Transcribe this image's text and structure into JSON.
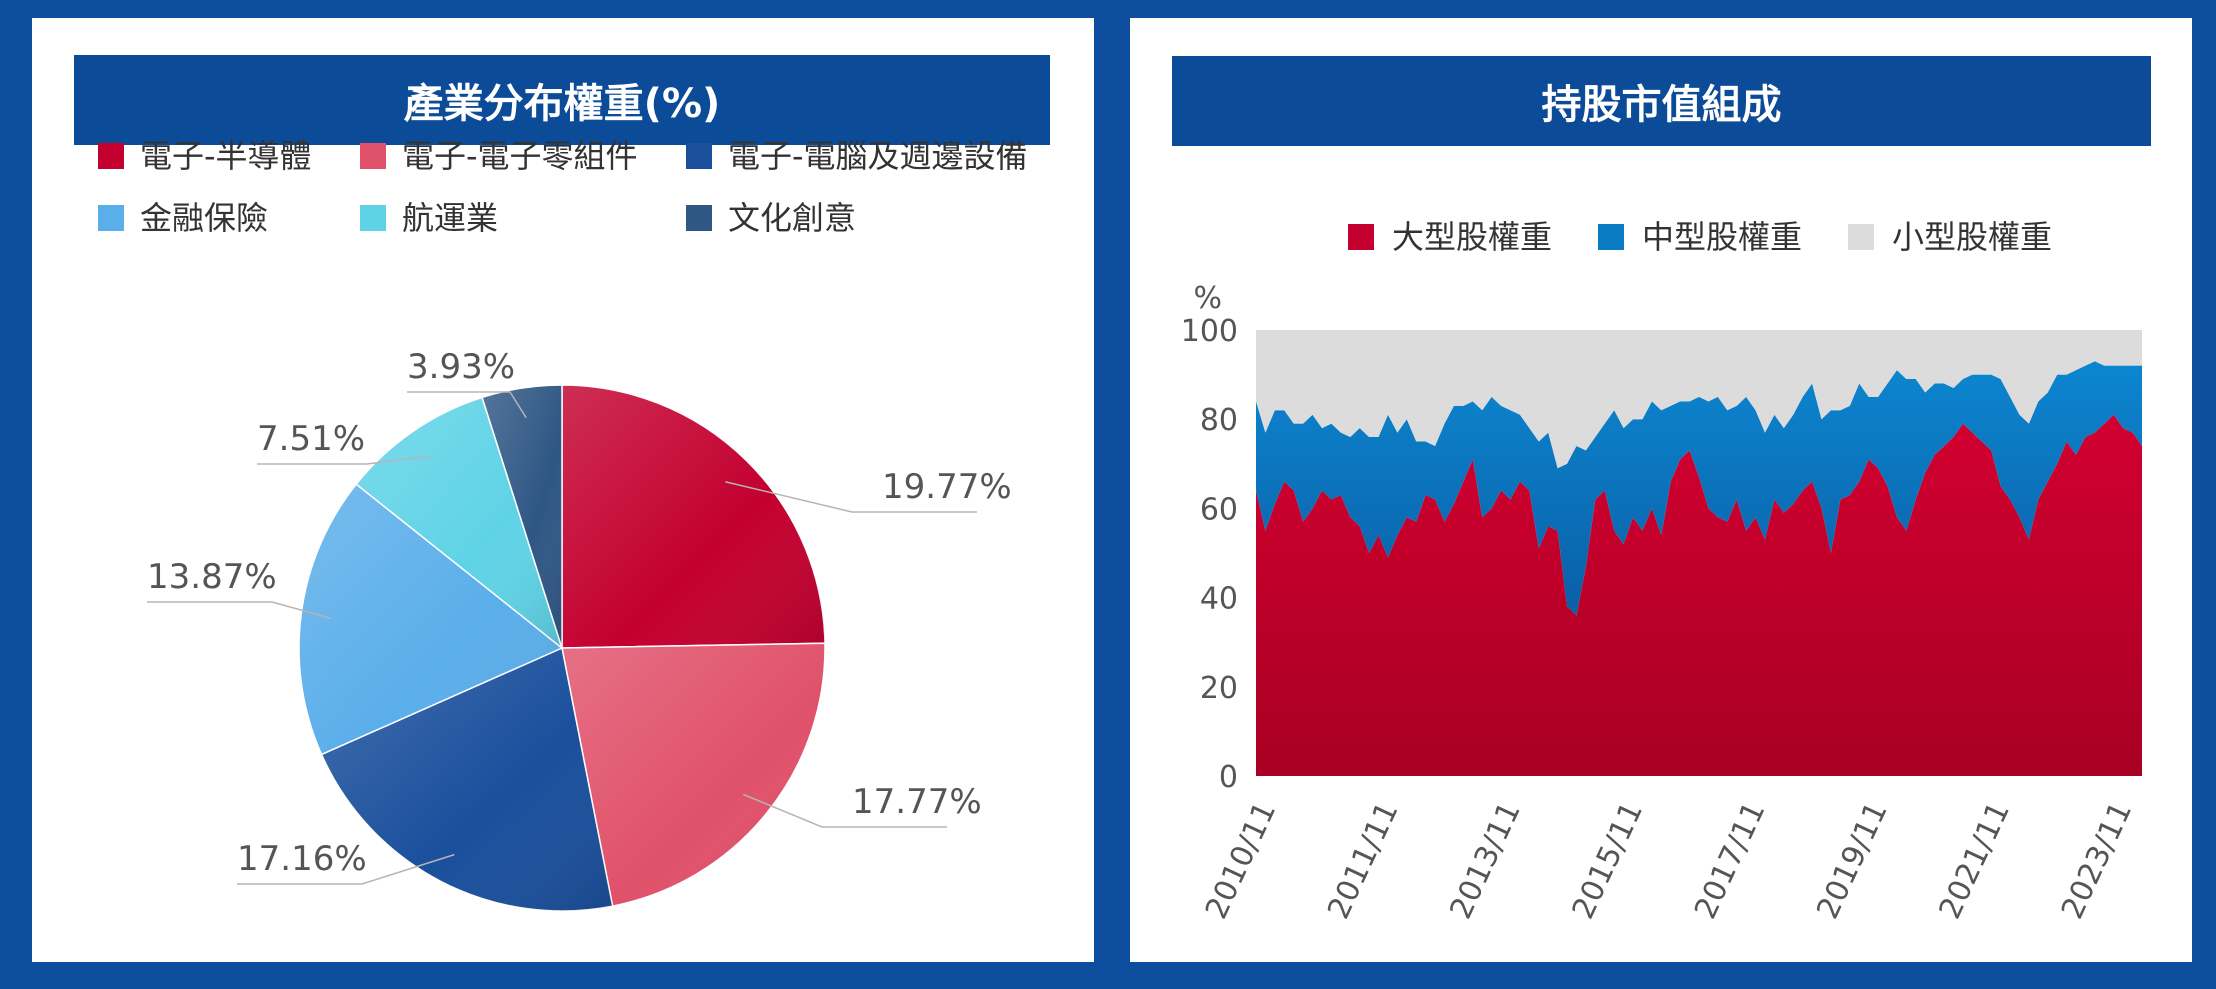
{
  "left_panel": {
    "title": "產業分布權重(%)"
  },
  "right_panel": {
    "title": "持股市值組成"
  },
  "chart_data": [
    {
      "type": "pie",
      "title": "產業分布權重(%)",
      "slices": [
        {
          "label": "電子-半導體",
          "value": 19.77,
          "color": "#c3002f"
        },
        {
          "label": "電子-電子零組件",
          "value": 17.77,
          "color": "#e0516a"
        },
        {
          "label": "電子-電腦及週邊設備",
          "value": 17.16,
          "color": "#1a4f9c"
        },
        {
          "label": "金融保險",
          "value": 13.87,
          "color": "#5aaeea"
        },
        {
          "label": "航運業",
          "value": 7.51,
          "color": "#5fd3e6"
        },
        {
          "label": "文化創意",
          "value": 3.93,
          "color": "#2f5784"
        }
      ],
      "value_labels": [
        "19.77%",
        "17.77%",
        "17.16%",
        "13.87%",
        "7.51%",
        "3.93%"
      ],
      "legend": [
        "電子-半導體",
        "電子-電子零組件",
        "電子-電腦及週邊設備",
        "金融保險",
        "航運業",
        "文化創意"
      ],
      "legend_position": "top"
    },
    {
      "type": "area",
      "stacked": true,
      "title": "持股市值組成",
      "ylabel": "%",
      "ylim": [
        0,
        100
      ],
      "yticks": [
        0,
        20,
        40,
        60,
        80,
        100
      ],
      "x_tick_labels": [
        "2010/11",
        "2011/11",
        "2013/11",
        "2015/11",
        "2017/11",
        "2019/11",
        "2021/11",
        "2023/11"
      ],
      "series": [
        {
          "name": "大型股權重",
          "color": "#c3002f",
          "values": [
            64,
            55,
            61,
            66,
            64,
            57,
            60,
            64,
            62,
            63,
            58,
            56,
            50,
            54,
            49,
            54,
            58,
            57,
            63,
            62,
            57,
            61,
            66,
            71,
            58,
            60,
            64,
            62,
            66,
            64,
            51,
            56,
            55,
            38,
            36,
            47,
            62,
            64,
            55,
            52,
            58,
            55,
            60,
            54,
            66,
            71,
            73,
            67,
            60,
            58,
            57,
            62,
            55,
            58,
            53,
            62,
            59,
            61,
            64,
            66,
            60,
            50,
            62,
            63,
            66,
            71,
            69,
            65,
            58,
            55,
            62,
            68,
            72,
            74,
            76,
            79,
            77,
            75,
            73,
            65,
            62,
            58,
            53,
            62,
            66,
            70,
            75,
            72,
            76,
            77,
            79,
            81,
            78,
            77,
            74
          ]
        },
        {
          "name": "中型股權重",
          "color": "#0a7cc4",
          "values": [
            20,
            22,
            21,
            16,
            15,
            22,
            21,
            14,
            17,
            14,
            18,
            22,
            26,
            22,
            32,
            23,
            22,
            18,
            12,
            12,
            22,
            22,
            17,
            13,
            24,
            25,
            19,
            20,
            15,
            14,
            24,
            21,
            14,
            32,
            38,
            26,
            14,
            15,
            27,
            26,
            22,
            25,
            24,
            28,
            17,
            13,
            11,
            18,
            24,
            27,
            25,
            21,
            30,
            24,
            24,
            19,
            19,
            20,
            21,
            22,
            20,
            32,
            20,
            20,
            22,
            14,
            16,
            23,
            33,
            34,
            27,
            18,
            16,
            14,
            11,
            10,
            13,
            15,
            17,
            24,
            23,
            23,
            26,
            22,
            20,
            20,
            15,
            19,
            16,
            16,
            13,
            11,
            14,
            15,
            18
          ]
        },
        {
          "name": "小型股權重",
          "color": "#dcdcdc",
          "values": [
            16,
            23,
            18,
            18,
            21,
            21,
            19,
            22,
            21,
            23,
            24,
            22,
            24,
            24,
            19,
            23,
            20,
            25,
            25,
            26,
            21,
            17,
            17,
            16,
            18,
            15,
            17,
            18,
            19,
            22,
            25,
            23,
            31,
            30,
            26,
            27,
            24,
            21,
            18,
            22,
            20,
            20,
            16,
            18,
            17,
            16,
            16,
            15,
            16,
            15,
            18,
            17,
            15,
            18,
            23,
            19,
            22,
            19,
            15,
            12,
            20,
            18,
            18,
            17,
            12,
            15,
            15,
            12,
            9,
            11,
            11,
            14,
            12,
            12,
            13,
            11,
            10,
            10,
            10,
            11,
            15,
            19,
            21,
            16,
            14,
            10,
            10,
            9,
            8,
            7,
            8,
            8,
            8,
            8,
            8
          ]
        }
      ],
      "legend": [
        "大型股權重",
        "中型股權重",
        "小型股權重"
      ],
      "legend_position": "top"
    }
  ]
}
